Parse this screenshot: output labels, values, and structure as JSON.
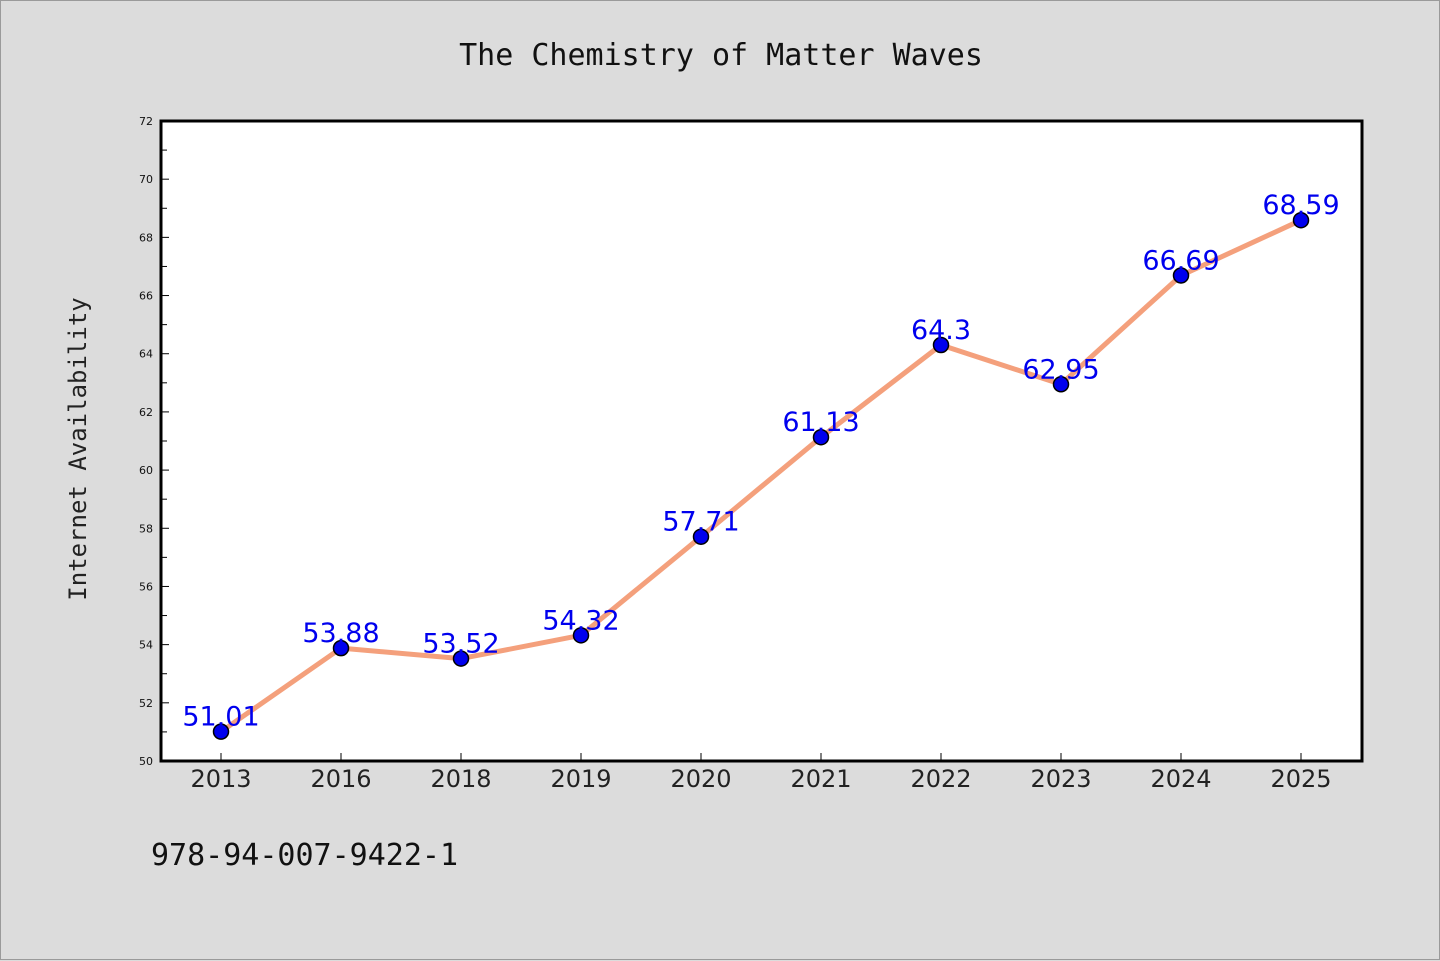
{
  "chart_data": {
    "type": "line",
    "title": "The Chemistry of Matter Waves",
    "xlabel": "",
    "ylabel": "Internet Availability",
    "categories": [
      "2013",
      "2016",
      "2018",
      "2019",
      "2020",
      "2021",
      "2022",
      "2023",
      "2024",
      "2025"
    ],
    "series": [
      {
        "values": [
          51.01,
          53.88,
          53.52,
          54.32,
          57.71,
          61.13,
          64.3,
          62.95,
          66.69,
          68.59
        ],
        "data_labels": [
          "51.01",
          "53.88",
          "53.52",
          "54.32",
          "57.71",
          "61.13",
          "64.3",
          "62.95",
          "66.69",
          "68.59"
        ]
      }
    ],
    "ylim": [
      50,
      72
    ],
    "yticks": [
      50,
      52,
      54,
      56,
      58,
      60,
      62,
      64,
      66,
      68,
      70,
      72
    ],
    "grid": false,
    "legend": "none",
    "colors": {
      "line": "#f4a07c",
      "marker": "#0000ee",
      "data_label": "#0000ee",
      "background": "#dcdcdc",
      "plot_area": "#ffffff"
    }
  },
  "footer_code": "978-94-007-9422-1"
}
